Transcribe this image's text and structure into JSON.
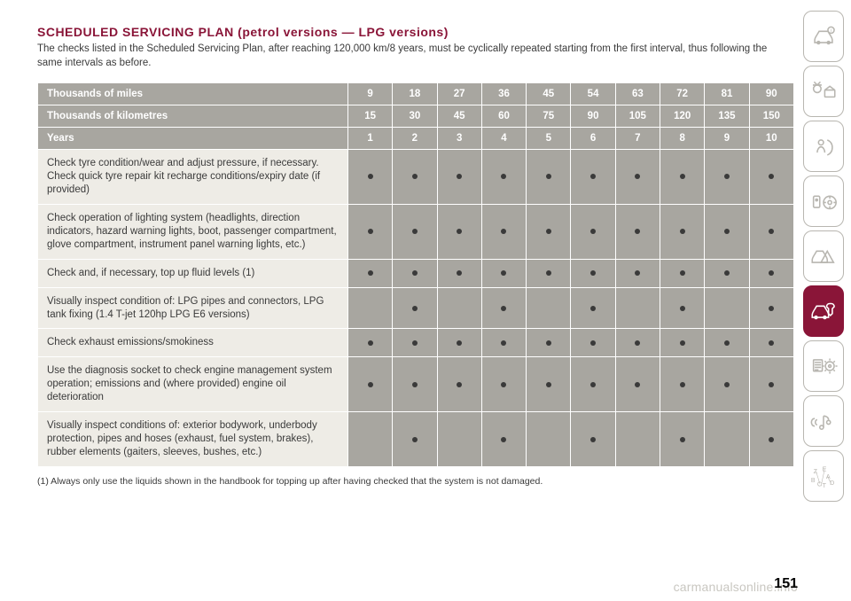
{
  "page_number": "151",
  "watermark": "carmanualsonline.info",
  "title": "SCHEDULED SERVICING PLAN (petrol versions — LPG versions)",
  "intro": "The checks listed in the Scheduled Servicing Plan, after reaching 120,000 km/8 years, must be cyclically repeated starting from the first interval, thus following the same intervals as before.",
  "footnote": "(1) Always only use the liquids shown in the handbook for topping up after having checked that the system is not damaged.",
  "table": {
    "header_rows": [
      {
        "label": "Thousands of miles",
        "values": [
          "9",
          "18",
          "27",
          "36",
          "45",
          "54",
          "63",
          "72",
          "81",
          "90"
        ]
      },
      {
        "label": "Thousands of kilometres",
        "values": [
          "15",
          "30",
          "45",
          "60",
          "75",
          "90",
          "105",
          "120",
          "135",
          "150"
        ]
      },
      {
        "label": "Years",
        "values": [
          "1",
          "2",
          "3",
          "4",
          "5",
          "6",
          "7",
          "8",
          "9",
          "10"
        ]
      }
    ],
    "body_rows": [
      {
        "label": "Check tyre condition/wear and adjust pressure, if necessary. Check quick tyre repair kit recharge conditions/expiry date (if provided)",
        "marks": [
          1,
          1,
          1,
          1,
          1,
          1,
          1,
          1,
          1,
          1
        ]
      },
      {
        "label": "Check operation of lighting system (headlights, direction indicators, hazard warning lights, boot, passenger compartment, glove compartment, instrument panel warning lights, etc.)",
        "marks": [
          1,
          1,
          1,
          1,
          1,
          1,
          1,
          1,
          1,
          1
        ]
      },
      {
        "label": "Check and, if necessary, top up fluid levels (1)",
        "marks": [
          1,
          1,
          1,
          1,
          1,
          1,
          1,
          1,
          1,
          1
        ]
      },
      {
        "label": "Visually inspect condition of: LPG pipes and connectors, LPG tank fixing (1.4 T-jet 120hp LPG E6 versions)",
        "marks": [
          0,
          1,
          0,
          1,
          0,
          1,
          0,
          1,
          0,
          1
        ]
      },
      {
        "label": "Check exhaust emissions/smokiness",
        "marks": [
          1,
          1,
          1,
          1,
          1,
          1,
          1,
          1,
          1,
          1
        ]
      },
      {
        "label": "Use the diagnosis socket to check engine management system operation; emissions and (where provided) engine oil deterioration",
        "marks": [
          1,
          1,
          1,
          1,
          1,
          1,
          1,
          1,
          1,
          1
        ]
      },
      {
        "label": "Visually inspect conditions of: exterior bodywork, underbody protection, pipes and hoses (exhaust, fuel system, brakes), rubber elements (gaiters, sleeves, bushes, etc.)",
        "marks": [
          0,
          1,
          0,
          1,
          0,
          1,
          0,
          1,
          0,
          1
        ]
      }
    ]
  },
  "colors": {
    "accent": "#8a1538",
    "header_cell": "#a8a6a0",
    "body_label_cell": "#eeece6",
    "body_data_cell": "#a8a6a0",
    "text": "#3a3a3a",
    "icon_border": "#b8b6b0"
  }
}
